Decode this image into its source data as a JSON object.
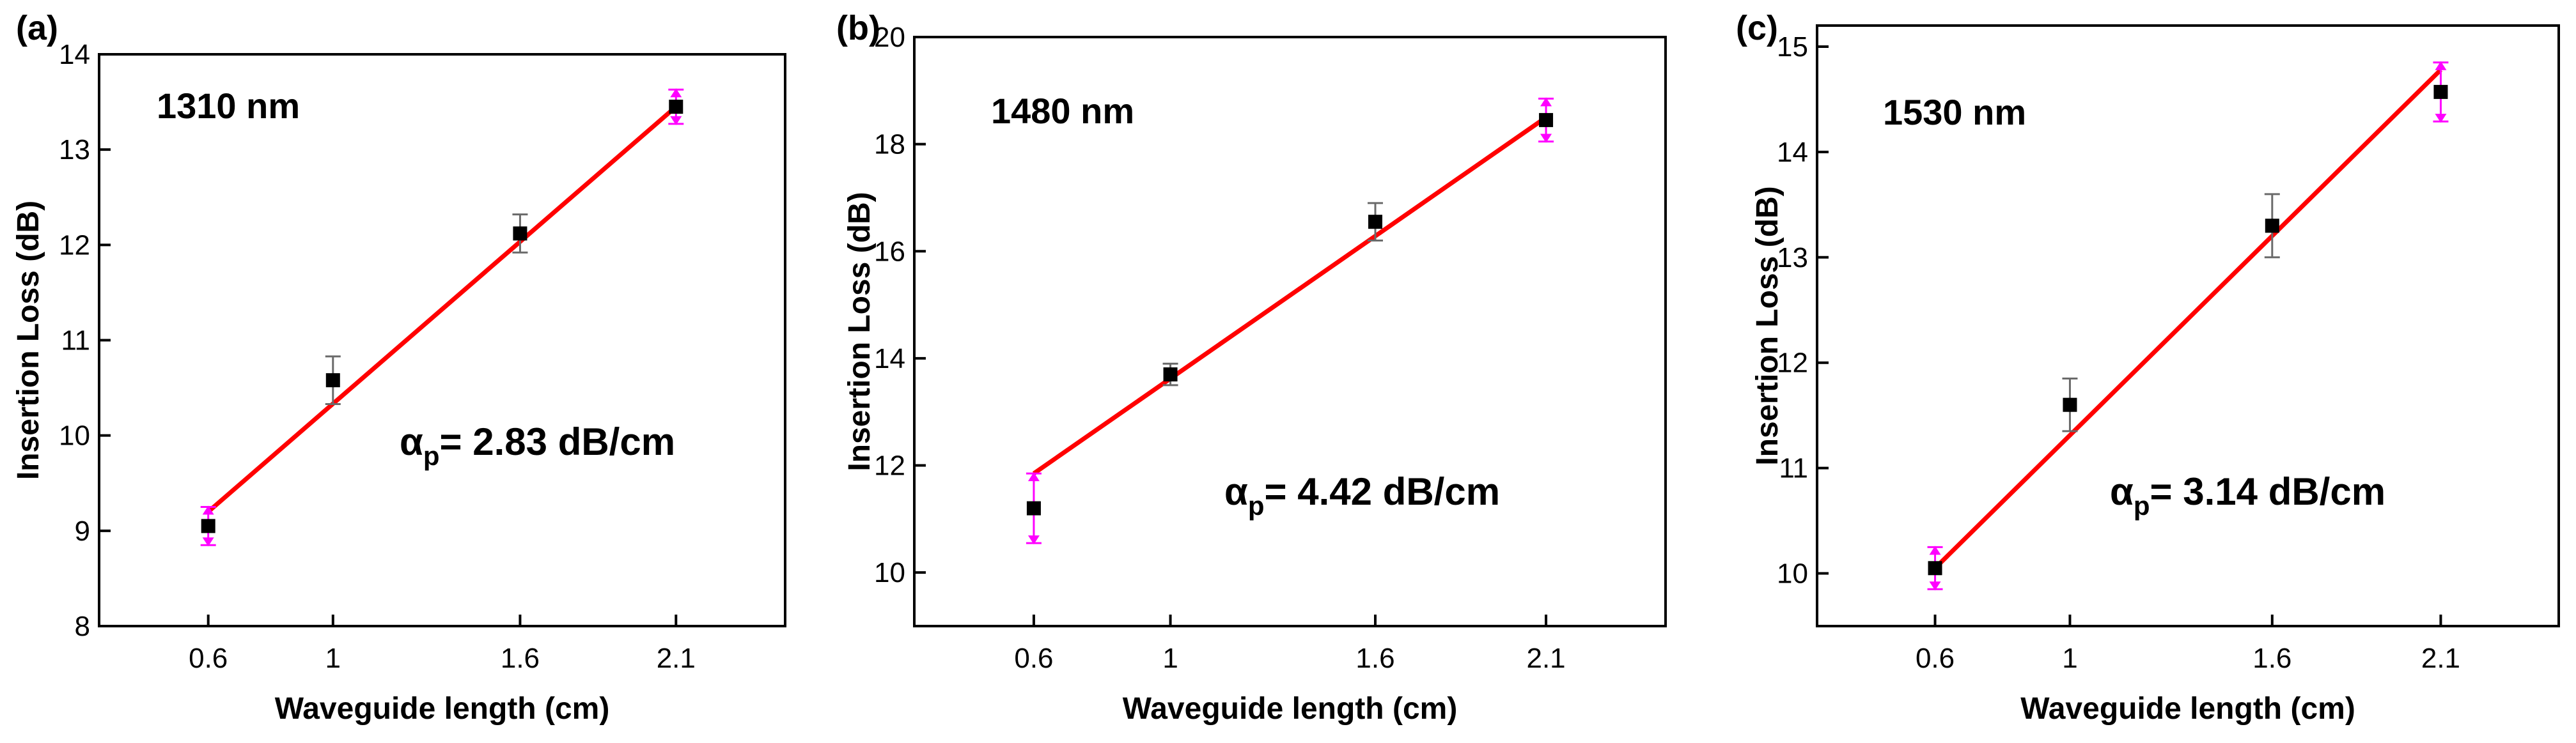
{
  "x_axis": {
    "ticks": [
      "0.6",
      "1",
      "1.6",
      "2.1"
    ],
    "tick_values": [
      0.6,
      1.0,
      1.6,
      2.1
    ]
  },
  "colors": {
    "fit_line": "#ff0000",
    "data_marker": "#000000",
    "error_bar": "#6a6a6a",
    "end_error_bar": "#ff00ff"
  },
  "chart_data": [
    {
      "type": "scatter",
      "panel": "(a)",
      "annotation": "1310 nm",
      "alpha_prefix": "α",
      "alpha_sub": "p",
      "alpha_value": "= 2.83 dB/cm",
      "xlabel": "Waveguide length (cm)",
      "ylabel": "Insertion Loss (dB)",
      "xlim": [
        0.25,
        2.45
      ],
      "ylim": [
        8,
        14
      ],
      "yticks": [
        8,
        9,
        10,
        11,
        12,
        13,
        14
      ],
      "x": [
        0.6,
        1.0,
        1.6,
        2.1
      ],
      "y": [
        9.05,
        10.58,
        12.12,
        13.45
      ],
      "yerr": [
        0.2,
        0.25,
        0.2,
        0.18
      ],
      "fit": {
        "x": [
          0.6,
          2.1
        ],
        "y": [
          9.2,
          13.45
        ]
      }
    },
    {
      "type": "scatter",
      "panel": "(b)",
      "annotation": "1480 nm",
      "alpha_prefix": "α",
      "alpha_sub": "p",
      "alpha_value": "= 4.42 dB/cm",
      "xlabel": "Waveguide length (cm)",
      "ylabel": "Insertion Loss (dB)",
      "xlim": [
        0.25,
        2.45
      ],
      "ylim": [
        9,
        20
      ],
      "yticks": [
        10,
        12,
        14,
        16,
        18,
        20
      ],
      "x": [
        0.6,
        1.0,
        1.6,
        2.1
      ],
      "y": [
        11.2,
        13.7,
        16.55,
        18.45
      ],
      "yerr": [
        0.65,
        0.2,
        0.35,
        0.4
      ],
      "fit": {
        "x": [
          0.6,
          2.1
        ],
        "y": [
          11.85,
          18.5
        ]
      }
    },
    {
      "type": "scatter",
      "panel": "(c)",
      "annotation": "1530 nm",
      "alpha_prefix": "α",
      "alpha_sub": "p",
      "alpha_value": "= 3.14 dB/cm",
      "xlabel": "Waveguide length (cm)",
      "ylabel": "Insertion Loss (dB)",
      "xlim": [
        0.25,
        2.45
      ],
      "ylim": [
        9.5,
        15.2
      ],
      "yticks": [
        10,
        11,
        12,
        13,
        14,
        15
      ],
      "x": [
        0.6,
        1.0,
        1.6,
        2.1
      ],
      "y": [
        10.05,
        11.6,
        13.3,
        14.57
      ],
      "yerr": [
        0.2,
        0.25,
        0.3,
        0.28
      ],
      "fit": {
        "x": [
          0.6,
          2.1
        ],
        "y": [
          10.05,
          14.78
        ]
      }
    }
  ]
}
